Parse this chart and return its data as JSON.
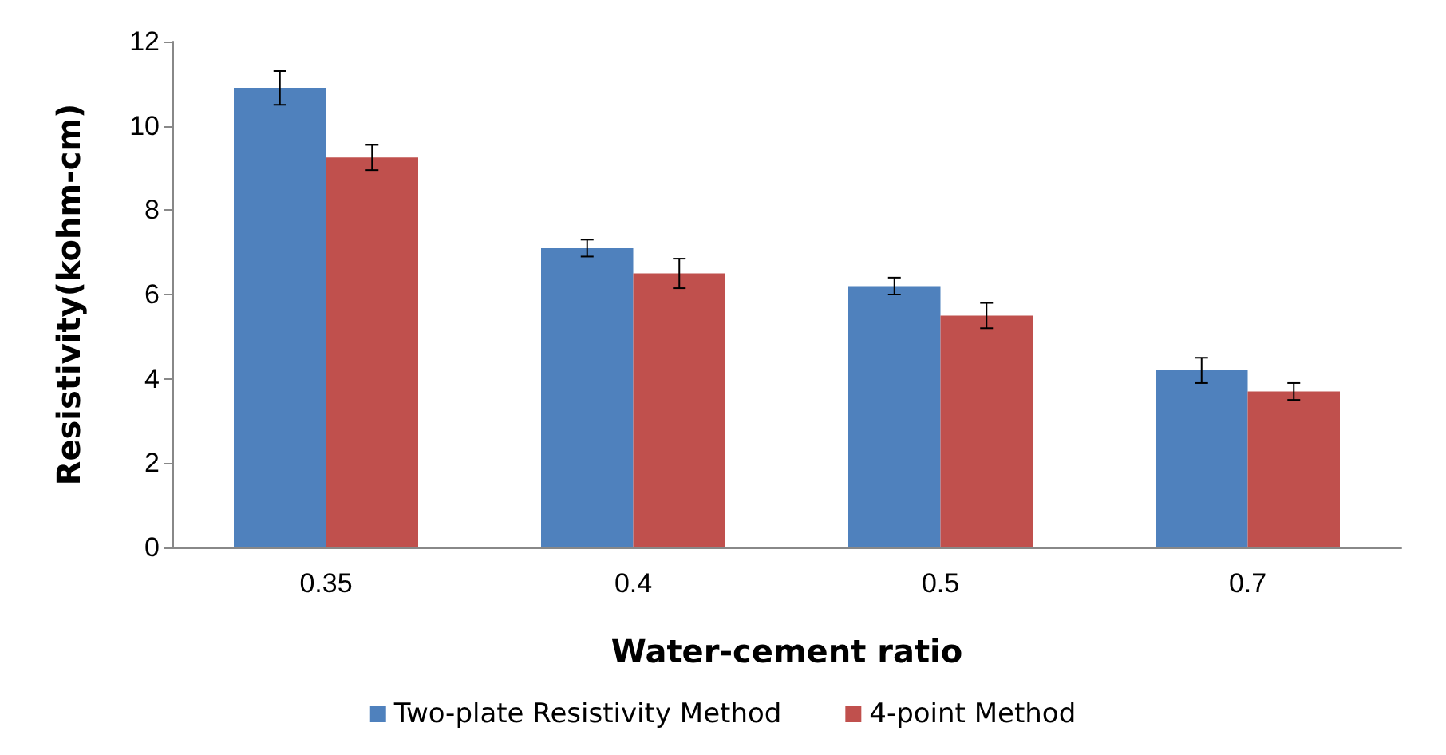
{
  "chart_data": {
    "type": "bar",
    "xlabel": "Water-cement ratio",
    "ylabel": "Resistivity(kohm-cm)",
    "categories": [
      "0.35",
      "0.4",
      "0.5",
      "0.7"
    ],
    "series": [
      {
        "name": "Two-plate Resistivity Method",
        "color": "#4f81bd",
        "values": [
          10.9,
          7.1,
          6.2,
          4.2
        ],
        "errors": [
          0.4,
          0.2,
          0.2,
          0.3
        ]
      },
      {
        "name": "4-point Method",
        "color": "#c0504d",
        "values": [
          9.25,
          6.5,
          5.5,
          3.7
        ],
        "errors": [
          0.3,
          0.35,
          0.3,
          0.2
        ]
      }
    ],
    "ylim": [
      0,
      12
    ],
    "yticks": [
      0,
      2,
      4,
      6,
      8,
      10,
      12
    ],
    "grid": false,
    "legend": "bottom"
  }
}
